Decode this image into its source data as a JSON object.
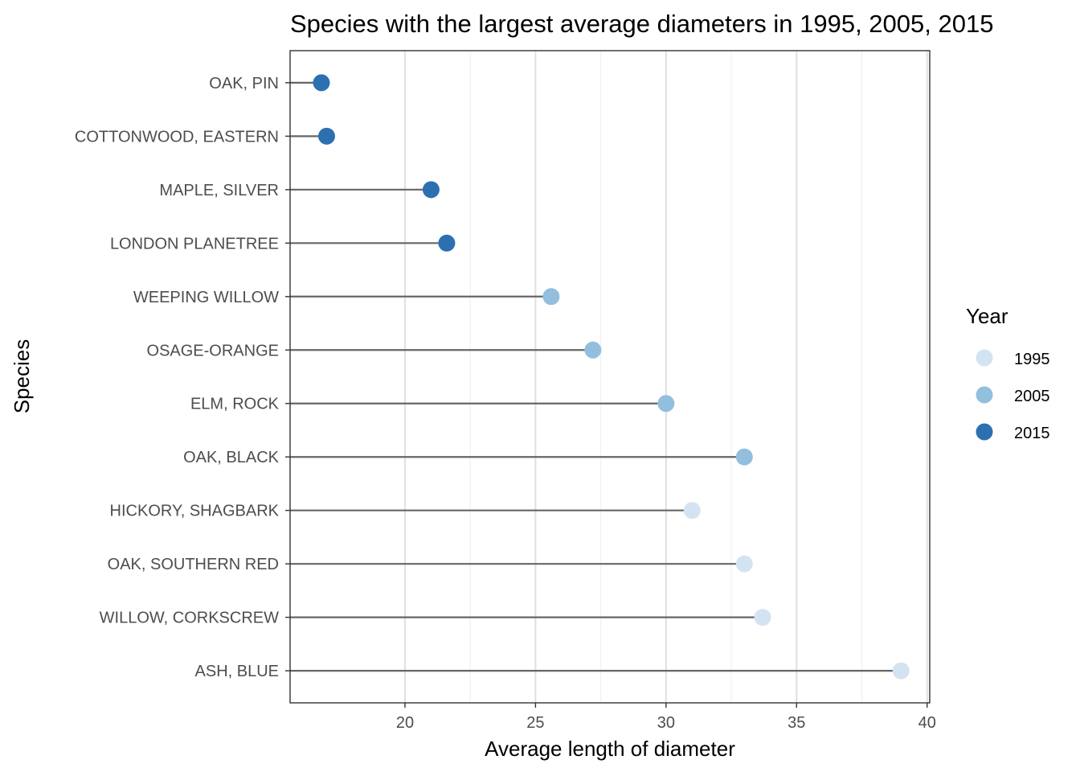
{
  "chart_data": {
    "type": "scatter",
    "title": "Species with the largest average diameters in 1995, 2005, 2015",
    "xlabel": "Average length of diameter",
    "ylabel": "Species",
    "xlim": [
      15.6,
      40.1
    ],
    "xticks": [
      20,
      25,
      30,
      35,
      40
    ],
    "grid": true,
    "legend": {
      "title": "Year",
      "position": "right",
      "entries": [
        {
          "label": "1995",
          "color": "#d4e3f2"
        },
        {
          "label": "2005",
          "color": "#92bfdd"
        },
        {
          "label": "2015",
          "color": "#2c70b1"
        }
      ]
    },
    "points": [
      {
        "species": "OAK, PIN",
        "value": 16.8,
        "year": "2015"
      },
      {
        "species": "COTTONWOOD, EASTERN",
        "value": 17.0,
        "year": "2015"
      },
      {
        "species": "MAPLE, SILVER",
        "value": 21.0,
        "year": "2015"
      },
      {
        "species": "LONDON PLANETREE",
        "value": 21.6,
        "year": "2015"
      },
      {
        "species": "WEEPING WILLOW",
        "value": 25.6,
        "year": "2005"
      },
      {
        "species": "OSAGE-ORANGE",
        "value": 27.2,
        "year": "2005"
      },
      {
        "species": "ELM, ROCK",
        "value": 30.0,
        "year": "2005"
      },
      {
        "species": "OAK, BLACK",
        "value": 33.0,
        "year": "2005"
      },
      {
        "species": "HICKORY, SHAGBARK",
        "value": 31.0,
        "year": "1995"
      },
      {
        "species": "OAK, SOUTHERN RED",
        "value": 33.0,
        "year": "1995"
      },
      {
        "species": "WILLOW, CORKSCREW",
        "value": 33.7,
        "year": "1995"
      },
      {
        "species": "ASH, BLUE",
        "value": 39.0,
        "year": "1995"
      }
    ]
  }
}
